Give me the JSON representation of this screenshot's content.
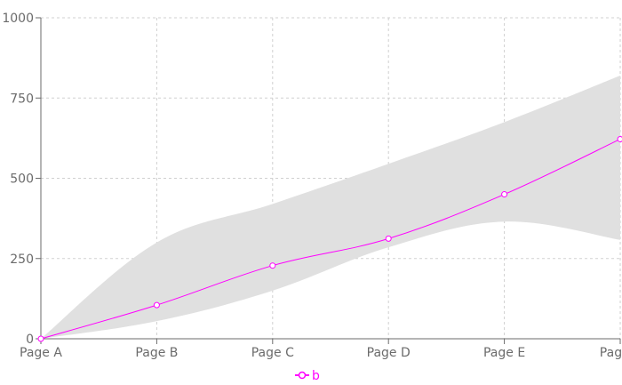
{
  "chart_data": {
    "type": "line",
    "title": "",
    "xlabel": "",
    "ylabel": "",
    "categories": [
      "Page A",
      "Page B",
      "Page C",
      "Page D",
      "Page E",
      "Page F"
    ],
    "ylim": [
      0,
      1000
    ],
    "y_ticks": [
      0,
      250,
      500,
      750,
      1000
    ],
    "y_tick_labels": [
      "0",
      "250",
      "500",
      "750",
      "1000"
    ],
    "grid": true,
    "legend": "bottom-center",
    "series": [
      {
        "name": "b",
        "type": "line",
        "values": [
          0,
          105,
          228,
          312,
          450,
          622
        ],
        "color": "#ff00ff"
      }
    ],
    "band": {
      "type": "area-range",
      "upper": [
        0,
        300,
        420,
        545,
        675,
        820
      ],
      "lower": [
        0,
        55,
        150,
        285,
        365,
        308
      ],
      "color": "#e0e0e0"
    },
    "colors": {
      "axis": "#6b6b6b",
      "grid": "#d0d0d0",
      "line": "#ff00ff",
      "band": "#e0e0e0"
    }
  }
}
